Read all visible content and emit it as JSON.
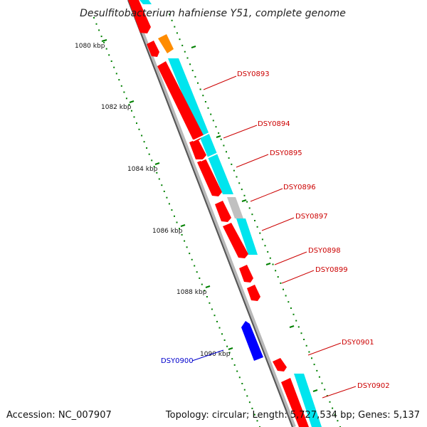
{
  "title": "Desulfitobacterium hafniense Y51, complete genome",
  "footer": {
    "accession": "Accession: NC_007907",
    "summary": "Topology: circular; Length: 5,727,534 bp; Genes: 5,137"
  },
  "colors": {
    "forward_strand": "#ff0000",
    "reverse_strand": "#0000ff",
    "cds_track": "#00e5ee",
    "rna_track": "#c0c0c0",
    "other_feature": "#ff8c00",
    "backbone": "#888888",
    "tick_marks": "#008000",
    "forward_label": "#cc0000",
    "reverse_label": "#0000cc"
  },
  "kbp_labels": [
    "1080 kbp",
    "1082 kbp",
    "1084 kbp",
    "1086 kbp",
    "1088 kbp",
    "1090 kbp"
  ],
  "gene_labels": {
    "forward": [
      "DSY0893",
      "DSY0894",
      "DSY0895",
      "DSY0896",
      "DSY0897",
      "DSY0898",
      "DSY0899",
      "DSY0901",
      "DSY0902"
    ],
    "reverse": [
      "DSY0900"
    ]
  }
}
